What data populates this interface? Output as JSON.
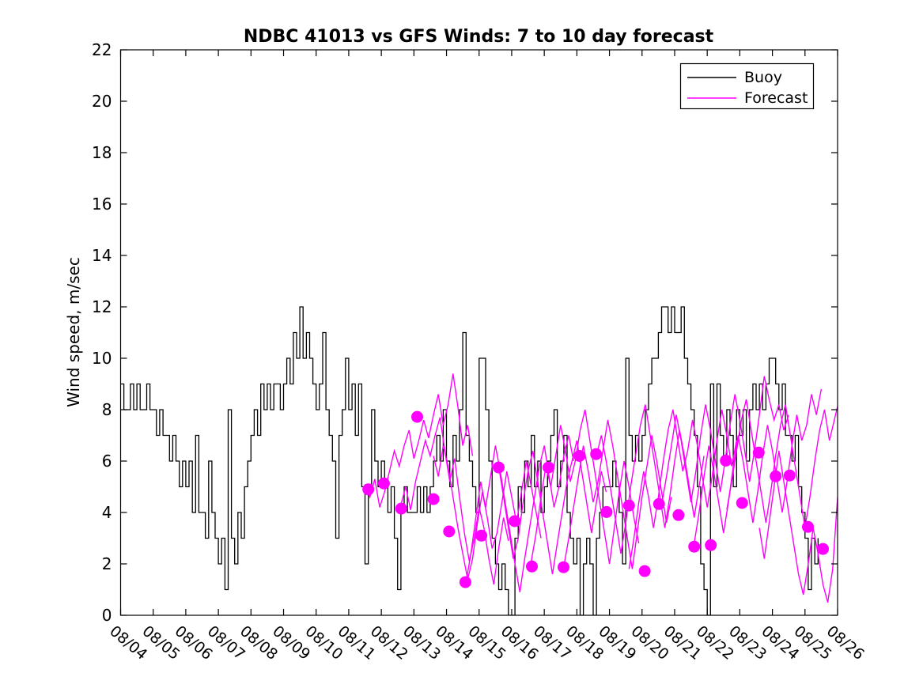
{
  "figure": {
    "background": "#FFFFFF"
  },
  "legend": {
    "position": "top-right",
    "entries": [
      {
        "label": "Buoy",
        "color": "#000000"
      },
      {
        "label": "Forecast",
        "color": "#FF00FF"
      }
    ]
  },
  "chart_data": {
    "type": "line",
    "title": "NDBC 41013 vs GFS Winds: 7 to 10 day forecast",
    "xlabel": "",
    "ylabel": "Wind speed, m/sec",
    "ylim": [
      0,
      22
    ],
    "ytick_step": 2,
    "grid": false,
    "legend_position": "top-right",
    "x_axis_span_days": 22,
    "x_tick_labels": [
      "08/04",
      "08/05",
      "08/06",
      "08/07",
      "08/08",
      "08/09",
      "08/10",
      "08/11",
      "08/12",
      "08/13",
      "08/14",
      "08/15",
      "08/16",
      "08/17",
      "08/18",
      "08/19",
      "08/20",
      "08/21",
      "08/22",
      "08/23",
      "08/24",
      "08/25",
      "08/26"
    ],
    "series": [
      {
        "name": "Buoy",
        "style": "step",
        "color": "#000000",
        "line_width": 1.3,
        "x_start_day": 0,
        "x_step_days": 0.1,
        "values": [
          9,
          8,
          8,
          9,
          8,
          9,
          8,
          8,
          9,
          8,
          8,
          7,
          8,
          7,
          7,
          6,
          7,
          6,
          5,
          6,
          5,
          6,
          4,
          7,
          4,
          4,
          3,
          6,
          4,
          3,
          2,
          3,
          1,
          8,
          3,
          2,
          4,
          3,
          5,
          6,
          7,
          8,
          7,
          9,
          8,
          9,
          8,
          9,
          9,
          8,
          9,
          10,
          9,
          11,
          10,
          12,
          10,
          11,
          10,
          9,
          8,
          9,
          11,
          8,
          7,
          6,
          3,
          7,
          8,
          10,
          8,
          9,
          7,
          9,
          5,
          2,
          5,
          8,
          6,
          5,
          6,
          5,
          4,
          5,
          3,
          1,
          4,
          5,
          4,
          4,
          4,
          5,
          4,
          5,
          4,
          5,
          6,
          7,
          6,
          8,
          6,
          5,
          7,
          6,
          8,
          11,
          7,
          6,
          5,
          4,
          10,
          10,
          8,
          6,
          3,
          2,
          1,
          2,
          1,
          0,
          0,
          3,
          5,
          4,
          6,
          5,
          7,
          5,
          6,
          4,
          5,
          6,
          7,
          8,
          5,
          6,
          7,
          4,
          3,
          2,
          3,
          0,
          2,
          3,
          2,
          0,
          3,
          4,
          5,
          5,
          5,
          6,
          5,
          4,
          2,
          10,
          7,
          6,
          7,
          6,
          7,
          8,
          9,
          10,
          10,
          11,
          12,
          12,
          11,
          12,
          11,
          11,
          12,
          10,
          9,
          8,
          7,
          5,
          2,
          1,
          0,
          9,
          5,
          9,
          7,
          6,
          8,
          7,
          5,
          8,
          7,
          8,
          6,
          8,
          9,
          8,
          9,
          8,
          9,
          10,
          10,
          9,
          8,
          9,
          7,
          7,
          6,
          7,
          5,
          4,
          3,
          1,
          3,
          2,
          3
        ]
      },
      {
        "name": "Forecast",
        "style": "line",
        "color": "#FF00FF",
        "line_width": 1.4,
        "x_step_days": 0.15,
        "segments": [
          {
            "start_day": 7.5,
            "values": [
              5.1,
              4.6,
              5.3,
              4.2,
              4.8,
              5.6,
              6.4,
              5.8,
              6.6,
              7.2,
              6.1,
              6.8,
              7.6,
              6.9,
              7.8,
              8.6,
              7.4,
              8.2,
              9.4,
              8.1,
              6.6,
              7.4,
              6.2
            ]
          },
          {
            "start_day": 8.6,
            "values": [
              4.3,
              5.0,
              4.1,
              5.2,
              6.0,
              6.8,
              6.2,
              7.0,
              7.7,
              6.4,
              5.2,
              6.1,
              4.6,
              3.2,
              2.1,
              3.0,
              4.2,
              3.4,
              2.2,
              1.2,
              2.6,
              3.8,
              2.9
            ]
          },
          {
            "start_day": 9.6,
            "values": [
              6.2,
              5.4,
              6.6,
              5.8,
              4.6,
              3.4,
              2.4,
              1.4,
              2.2,
              3.6,
              4.8,
              3.8,
              2.6,
              3.2,
              4.4,
              5.6,
              4.6,
              3.6,
              4.8,
              6.0,
              5.0,
              4.0,
              3.0
            ]
          },
          {
            "start_day": 10.6,
            "values": [
              1.3,
              2.4,
              3.8,
              5.2,
              4.2,
              5.4,
              6.6,
              5.6,
              4.4,
              3.2,
              2.0,
              0.9,
              2.2,
              3.4,
              4.6,
              5.8,
              6.6,
              5.4,
              4.2,
              5.0,
              6.2,
              7.0,
              6.0
            ]
          },
          {
            "start_day": 11.6,
            "values": [
              5.8,
              4.6,
              3.4,
              2.2,
              3.0,
              4.4,
              5.6,
              6.4,
              5.2,
              4.0,
              2.8,
              1.6,
              2.8,
              4.0,
              5.2,
              6.0,
              6.8,
              5.6,
              4.4,
              3.2,
              4.4,
              5.6,
              4.8
            ]
          },
          {
            "start_day": 12.6,
            "values": [
              2.1,
              3.2,
              4.6,
              5.8,
              5.0,
              6.2,
              7.4,
              6.4,
              5.2,
              6.0,
              7.2,
              8.0,
              6.8,
              5.6,
              4.4,
              3.2,
              2.0,
              3.4,
              4.8,
              6.0,
              5.0,
              3.8,
              2.8
            ]
          },
          {
            "start_day": 13.6,
            "values": [
              1.9,
              3.0,
              4.2,
              5.4,
              6.6,
              5.6,
              4.4,
              5.2,
              6.4,
              7.6,
              6.6,
              5.4,
              4.2,
              3.0,
              1.8,
              3.2,
              4.6,
              5.8,
              7.0,
              6.0,
              4.8,
              3.6,
              4.6
            ]
          },
          {
            "start_day": 14.6,
            "values": [
              6.2,
              7.0,
              6.0,
              4.8,
              3.6,
              2.4,
              3.6,
              5.0,
              6.2,
              7.4,
              8.2,
              7.0,
              5.8,
              4.6,
              3.4,
              4.6,
              6.0,
              7.2,
              6.2,
              5.0,
              3.8,
              5.0,
              6.2
            ]
          },
          {
            "start_day": 15.6,
            "values": [
              1.8,
              3.0,
              4.4,
              5.6,
              4.6,
              3.4,
              4.6,
              6.0,
              7.2,
              8.0,
              6.8,
              5.6,
              6.4,
              7.6,
              6.6,
              5.4,
              4.2,
              5.4,
              6.8,
              8.0,
              7.0,
              5.8,
              6.8
            ]
          },
          {
            "start_day": 16.6,
            "values": [
              4.3,
              5.4,
              6.6,
              7.8,
              6.8,
              5.6,
              4.4,
              5.6,
              7.0,
              8.2,
              7.2,
              6.0,
              4.8,
              6.0,
              7.4,
              8.6,
              7.6,
              6.4,
              5.2,
              6.4,
              7.8,
              9.3,
              8.4,
              7.6,
              8.2,
              7.2,
              7.8
            ]
          },
          {
            "start_day": 17.6,
            "values": [
              2.8,
              4.0,
              5.4,
              6.6,
              5.6,
              4.4,
              3.2,
              4.4,
              5.8,
              7.0,
              6.0,
              4.8,
              3.6,
              4.8,
              6.2,
              7.4,
              6.4,
              5.2,
              4.0,
              5.2,
              6.6,
              7.8,
              6.8,
              7.4,
              8.6,
              7.8,
              8.8
            ]
          },
          {
            "start_day": 18.6,
            "values": [
              4.1,
              5.2,
              6.4,
              7.6,
              8.4,
              7.2,
              6.0,
              4.8,
              3.6,
              4.8,
              6.2,
              7.4,
              8.2,
              7.0,
              5.8,
              4.6,
              3.4,
              4.6,
              6.0,
              7.2,
              8.0,
              6.8,
              7.6,
              8.4
            ]
          },
          {
            "start_day": 19.6,
            "values": [
              3.4,
              2.2,
              3.6,
              5.0,
              6.4,
              5.2,
              4.0,
              2.8,
              1.6,
              0.8,
              2.0,
              3.4,
              2.4,
              1.2,
              0.5,
              1.8,
              4.6
            ]
          }
        ]
      },
      {
        "name": "Forecast markers",
        "style": "scatter",
        "color": "#FF00FF",
        "marker_radius": 7.5,
        "points": [
          [
            7.6,
            4.9
          ],
          [
            8.08,
            5.13
          ],
          [
            8.61,
            4.15
          ],
          [
            9.1,
            7.72
          ],
          [
            9.6,
            4.52
          ],
          [
            10.08,
            3.26
          ],
          [
            10.58,
            1.29
          ],
          [
            11.07,
            3.1
          ],
          [
            11.6,
            5.75
          ],
          [
            12.09,
            3.66
          ],
          [
            12.62,
            1.9
          ],
          [
            13.13,
            5.75
          ],
          [
            13.59,
            1.87
          ],
          [
            14.08,
            6.2
          ],
          [
            14.59,
            6.27
          ],
          [
            14.91,
            4.02
          ],
          [
            15.6,
            4.27
          ],
          [
            16.08,
            1.72
          ],
          [
            16.52,
            4.33
          ],
          [
            17.12,
            3.9
          ],
          [
            17.6,
            2.67
          ],
          [
            18.11,
            2.73
          ],
          [
            18.57,
            6.02
          ],
          [
            19.07,
            4.37
          ],
          [
            19.58,
            6.33
          ],
          [
            20.1,
            5.41
          ],
          [
            20.53,
            5.44
          ],
          [
            21.09,
            3.44
          ],
          [
            21.55,
            2.58
          ]
        ]
      }
    ]
  }
}
